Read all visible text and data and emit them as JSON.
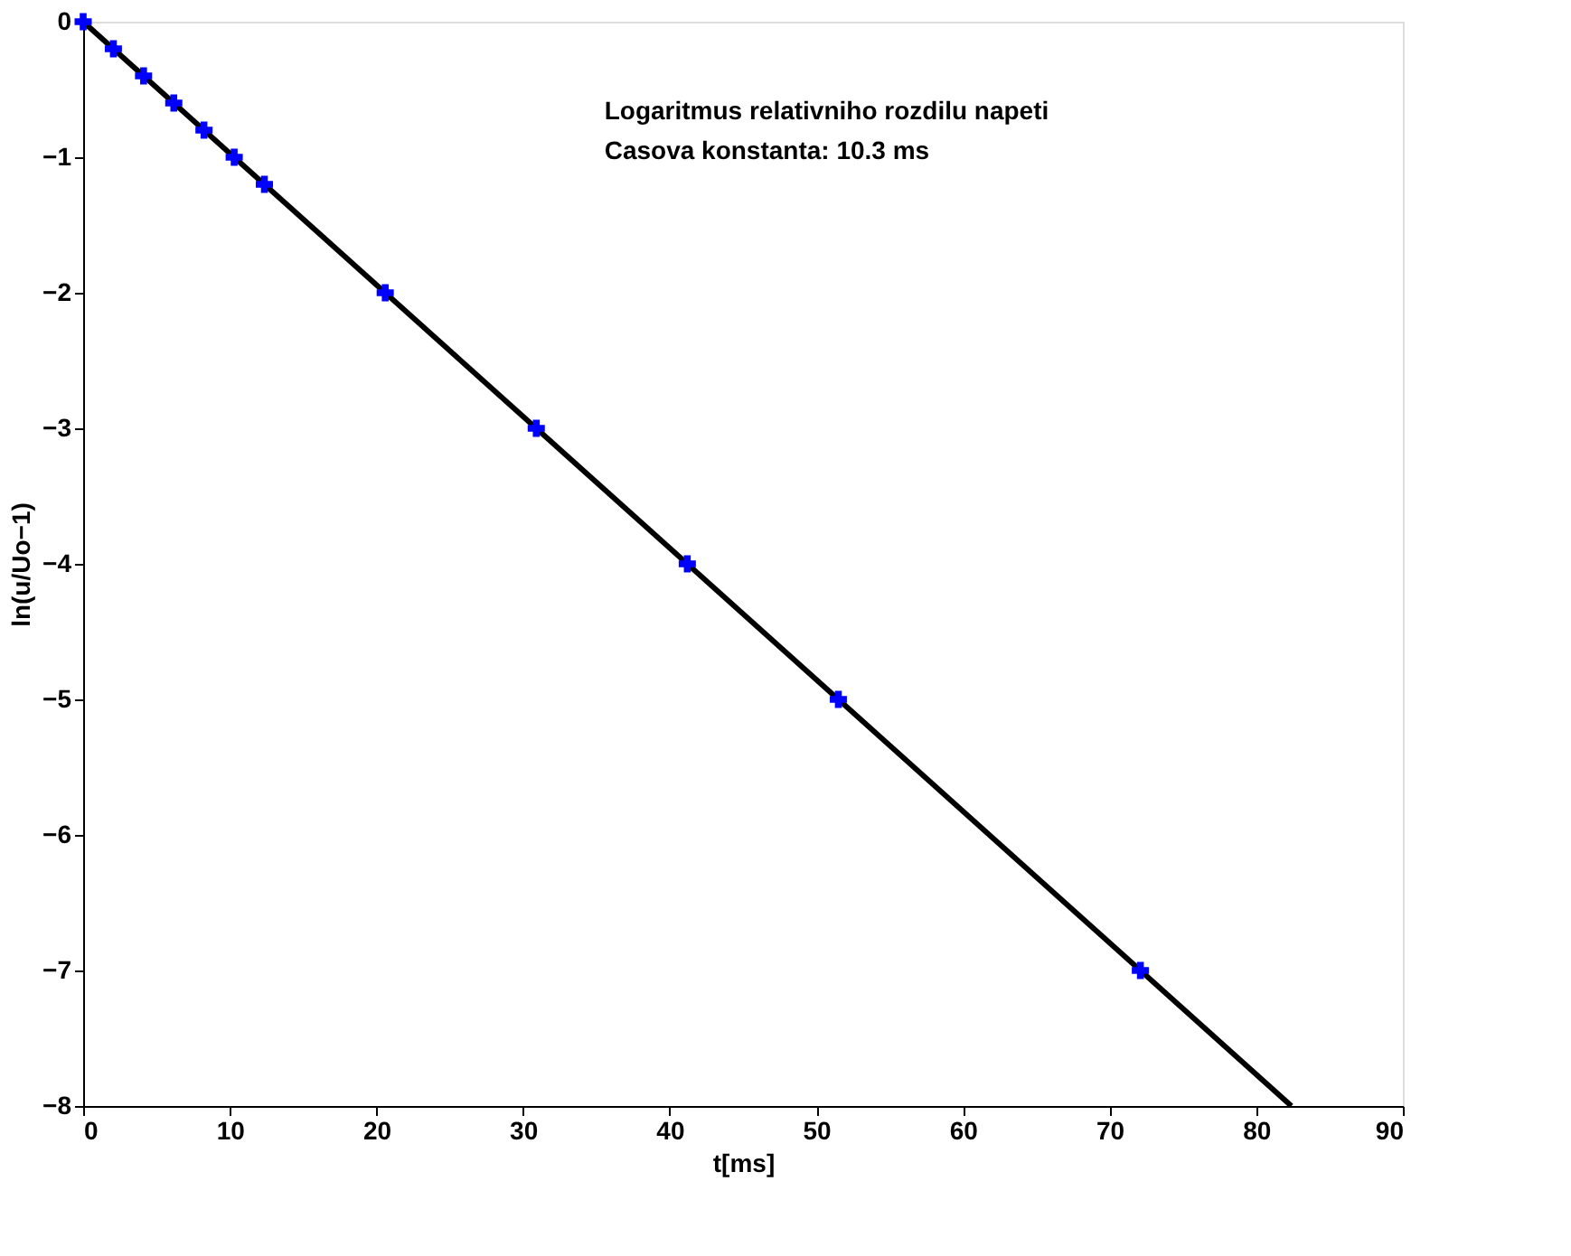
{
  "chart_data": {
    "type": "line",
    "xlabel": "t[ms]",
    "ylabel": "ln(u/Uo−1)",
    "annotations": [
      "Logaritmus relativniho rozdilu napeti",
      "Casova konstanta: 10.3 ms"
    ],
    "xlim": [
      0,
      90
    ],
    "xticks": [
      0,
      10,
      20,
      30,
      40,
      50,
      60,
      70,
      80,
      90
    ],
    "ylim": [
      -8,
      0
    ],
    "yticks": [
      -8,
      -7,
      -6,
      -5,
      -4,
      -3,
      -2,
      -1,
      0
    ],
    "grid": false,
    "series": [
      {
        "color": "#000000",
        "marker": "none",
        "line_style": "solid",
        "x": [
          0,
          82.4
        ],
        "values": [
          0,
          -8
        ]
      },
      {
        "type": "scatter",
        "color": "#0000ff",
        "marker": "cross",
        "x": [
          0,
          2.06,
          4.12,
          6.18,
          8.24,
          10.3,
          12.36,
          20.6,
          30.9,
          41.2,
          51.5,
          72.1
        ],
        "values": [
          0,
          -0.2,
          -0.4,
          -0.6,
          -0.8,
          -1,
          -1.2,
          -2,
          -3,
          -4,
          -5,
          -7
        ]
      }
    ]
  }
}
